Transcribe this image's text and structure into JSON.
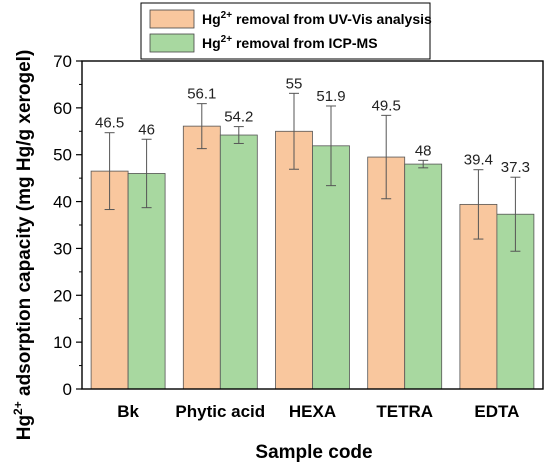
{
  "chart_data": {
    "type": "bar",
    "xlabel": "Sample code",
    "ylabel_parts": {
      "base": "Hg",
      "sup": "2+",
      "rest": " adsorption capacity (mg Hg/g xerogel)"
    },
    "ylim": [
      0,
      70
    ],
    "yticks": [
      0,
      10,
      20,
      30,
      40,
      50,
      60,
      70
    ],
    "categories": [
      "Bk",
      "Phytic acid",
      "HEXA",
      "TETRA",
      "EDTA"
    ],
    "legend_position": "top-center",
    "series": [
      {
        "name_parts": {
          "base": "Hg",
          "sup": "2+",
          "rest": " removal from UV-Vis analysis"
        },
        "color": "#f9c79e",
        "values": [
          46.5,
          56.1,
          55,
          49.5,
          39.4
        ],
        "labels": [
          "46.5",
          "56.1",
          "55",
          "49.5",
          "39.4"
        ],
        "errors": [
          8.2,
          4.8,
          8.1,
          8.9,
          7.4
        ]
      },
      {
        "name_parts": {
          "base": "Hg",
          "sup": "2+",
          "rest": " removal from ICP-MS"
        },
        "color": "#a8d8a0",
        "values": [
          46,
          54.2,
          51.9,
          48,
          37.3
        ],
        "labels": [
          "46",
          "54.2",
          "51.9",
          "48",
          "37.3"
        ],
        "errors": [
          7.3,
          1.8,
          8.5,
          0.8,
          7.9
        ]
      }
    ]
  }
}
